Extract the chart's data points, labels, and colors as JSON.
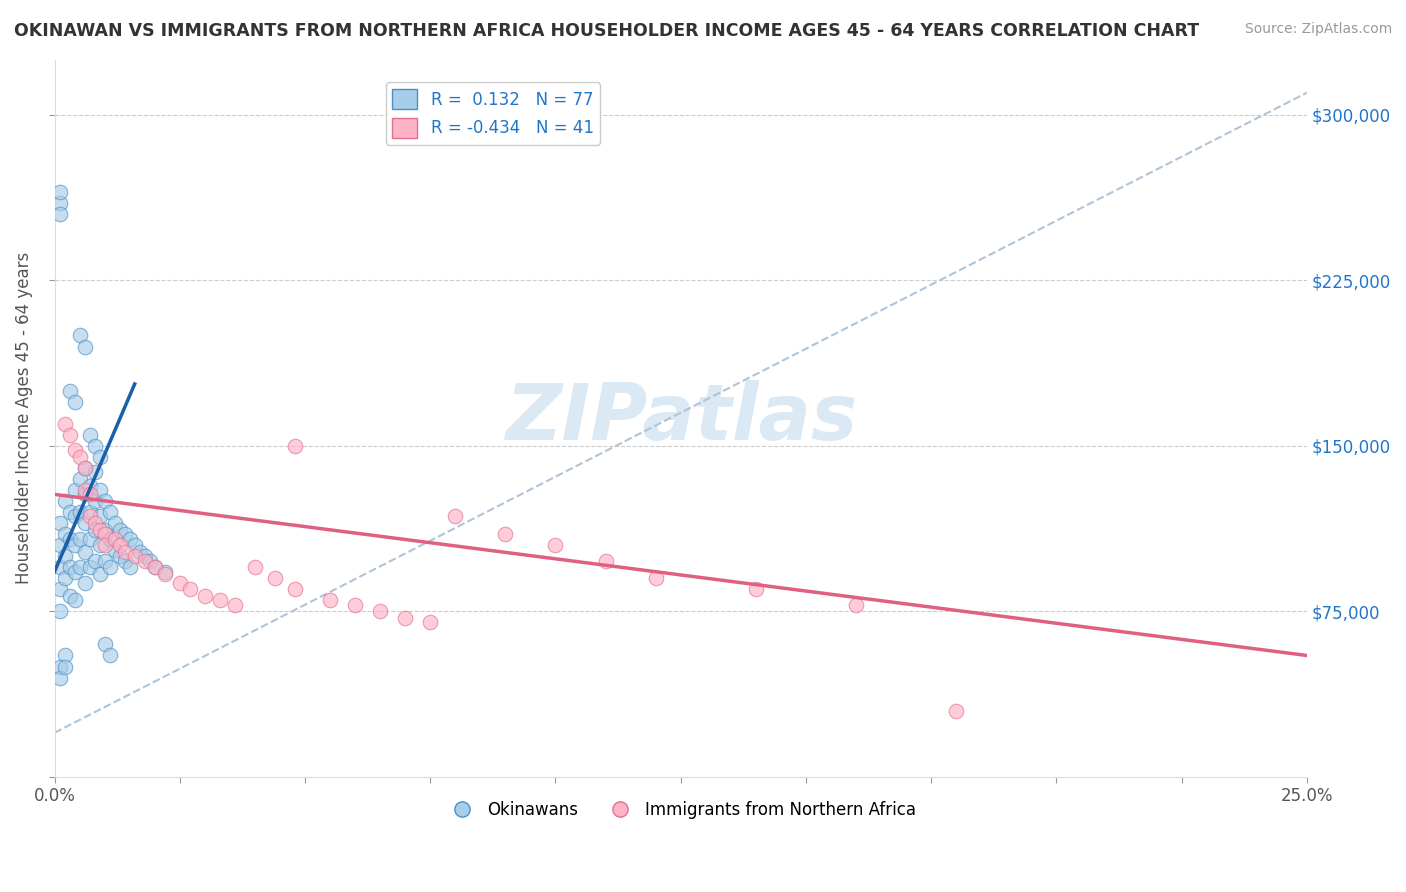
{
  "title": "OKINAWAN VS IMMIGRANTS FROM NORTHERN AFRICA HOUSEHOLDER INCOME AGES 45 - 64 YEARS CORRELATION CHART",
  "source": "Source: ZipAtlas.com",
  "ylabel": "Householder Income Ages 45 - 64 years",
  "xlim": [
    0.0,
    0.25
  ],
  "ylim": [
    0,
    325000
  ],
  "ytick_vals": [
    75000,
    150000,
    225000,
    300000
  ],
  "ytick_labels": [
    "$75,000",
    "$150,000",
    "$225,000",
    "$300,000"
  ],
  "xticks": [
    0.0,
    0.025,
    0.05,
    0.075,
    0.1,
    0.125,
    0.15,
    0.175,
    0.2,
    0.225,
    0.25
  ],
  "xtick_labels": [
    "0.0%",
    "",
    "",
    "",
    "",
    "",
    "",
    "",
    "",
    "",
    "25.0%"
  ],
  "color_blue": "#a8cde8",
  "color_pink": "#ffb3c6",
  "color_blue_edge": "#4a90c4",
  "color_pink_edge": "#e07090",
  "color_blue_line": "#1a5fa8",
  "color_pink_line": "#e06080",
  "color_dashed": "#b0c4d8",
  "watermark_color": "#cce0f0",
  "legend_labels": [
    "Okinawans",
    "Immigrants from Northern Africa"
  ],
  "blue_scatter_x": [
    0.001,
    0.001,
    0.001,
    0.001,
    0.001,
    0.002,
    0.002,
    0.002,
    0.002,
    0.003,
    0.003,
    0.003,
    0.003,
    0.004,
    0.004,
    0.004,
    0.004,
    0.004,
    0.005,
    0.005,
    0.005,
    0.005,
    0.006,
    0.006,
    0.006,
    0.006,
    0.006,
    0.007,
    0.007,
    0.007,
    0.007,
    0.008,
    0.008,
    0.008,
    0.008,
    0.009,
    0.009,
    0.009,
    0.009,
    0.01,
    0.01,
    0.01,
    0.011,
    0.011,
    0.011,
    0.012,
    0.012,
    0.013,
    0.013,
    0.014,
    0.014,
    0.015,
    0.015,
    0.016,
    0.017,
    0.018,
    0.019,
    0.02,
    0.022,
    0.001,
    0.001,
    0.001,
    0.005,
    0.006,
    0.003,
    0.004,
    0.007,
    0.008,
    0.009,
    0.002,
    0.01,
    0.011,
    0.001,
    0.001,
    0.002
  ],
  "blue_scatter_y": [
    115000,
    105000,
    95000,
    85000,
    75000,
    125000,
    110000,
    100000,
    90000,
    120000,
    108000,
    95000,
    82000,
    130000,
    118000,
    105000,
    93000,
    80000,
    135000,
    120000,
    108000,
    95000,
    140000,
    128000,
    115000,
    102000,
    88000,
    132000,
    120000,
    108000,
    95000,
    138000,
    125000,
    112000,
    98000,
    130000,
    118000,
    105000,
    92000,
    125000,
    112000,
    98000,
    120000,
    108000,
    95000,
    115000,
    103000,
    112000,
    100000,
    110000,
    98000,
    108000,
    95000,
    105000,
    102000,
    100000,
    98000,
    95000,
    93000,
    260000,
    265000,
    255000,
    200000,
    195000,
    175000,
    170000,
    155000,
    150000,
    145000,
    55000,
    60000,
    55000,
    50000,
    45000,
    50000
  ],
  "pink_scatter_x": [
    0.002,
    0.003,
    0.004,
    0.005,
    0.006,
    0.006,
    0.007,
    0.007,
    0.008,
    0.009,
    0.01,
    0.01,
    0.012,
    0.013,
    0.014,
    0.016,
    0.018,
    0.02,
    0.022,
    0.025,
    0.027,
    0.03,
    0.033,
    0.036,
    0.04,
    0.044,
    0.048,
    0.055,
    0.06,
    0.065,
    0.07,
    0.075,
    0.08,
    0.09,
    0.1,
    0.11,
    0.12,
    0.14,
    0.16,
    0.18,
    0.048
  ],
  "pink_scatter_y": [
    160000,
    155000,
    148000,
    145000,
    140000,
    130000,
    128000,
    118000,
    115000,
    112000,
    110000,
    105000,
    108000,
    105000,
    102000,
    100000,
    98000,
    95000,
    92000,
    88000,
    85000,
    82000,
    80000,
    78000,
    95000,
    90000,
    85000,
    80000,
    78000,
    75000,
    72000,
    70000,
    118000,
    110000,
    105000,
    98000,
    90000,
    85000,
    78000,
    30000,
    150000
  ],
  "blue_line_x0": 0.0,
  "blue_line_x1": 0.016,
  "blue_line_y0": 93000,
  "blue_line_y1": 178000,
  "pink_line_x0": 0.0,
  "pink_line_x1": 0.25,
  "pink_line_y0": 128000,
  "pink_line_y1": 55000,
  "dash_line_x0": 0.0,
  "dash_line_x1": 0.25,
  "dash_line_y0": 20000,
  "dash_line_y1": 310000
}
